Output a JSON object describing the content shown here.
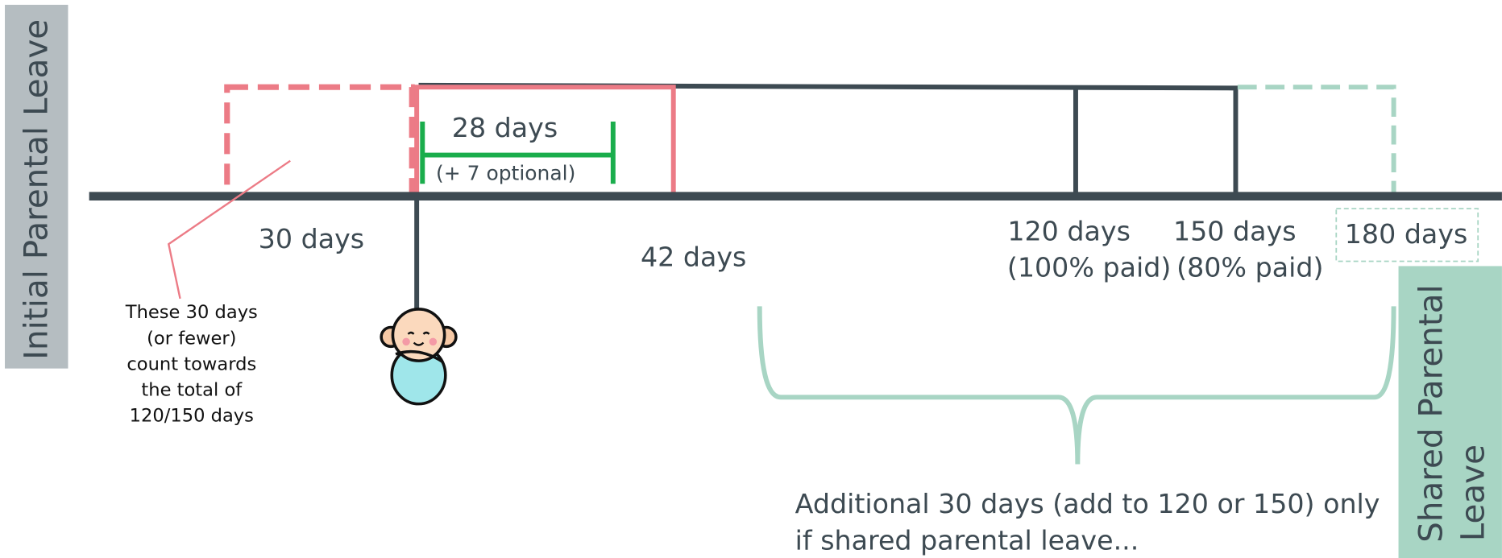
{
  "side_labels": {
    "left": "Initial Parental Leave",
    "right": [
      "Shared Parental",
      "Leave"
    ]
  },
  "timeline": {
    "pre_birth": "30 days",
    "mandatory": "28 days",
    "optional": "(+ 7 optional)",
    "postnatal": "42 days",
    "milestones": [
      {
        "days": "120 days",
        "pay": "(100% paid)"
      },
      {
        "days": "150 days",
        "pay": "(80% paid)"
      },
      {
        "days": "180 days"
      }
    ]
  },
  "notes": {
    "pre_birth": [
      "These 30 days",
      "(or fewer)",
      "count towards",
      "the total of",
      "120/150 days"
    ],
    "shared": [
      "Additional 30 days (add to 120 or 150) only",
      "if shared parental leave..."
    ]
  }
}
